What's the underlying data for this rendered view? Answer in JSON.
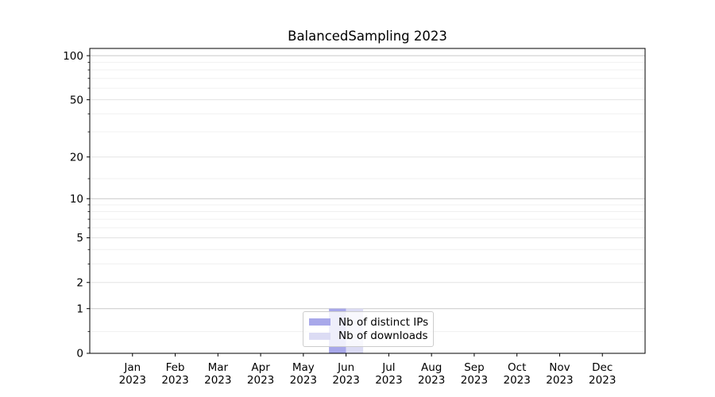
{
  "chart_data": {
    "type": "bar",
    "title": "BalancedSampling 2023",
    "categories": [
      "Jan",
      "Feb",
      "Mar",
      "Apr",
      "May",
      "Jun",
      "Jul",
      "Aug",
      "Sep",
      "Oct",
      "Nov",
      "Dec"
    ],
    "category_year": "2023",
    "series": [
      {
        "name": "Nb of distinct IPs",
        "color": "#a8a8ea",
        "values": [
          0,
          0,
          0,
          0,
          0,
          1,
          0,
          0,
          0,
          0,
          0,
          0
        ]
      },
      {
        "name": "Nb of downloads",
        "color": "#dcdcf4",
        "values": [
          0,
          0,
          0,
          0,
          0,
          1,
          0,
          0,
          0,
          0,
          0,
          0
        ]
      }
    ],
    "yscale": "log1p",
    "ylim": [
      0,
      112
    ],
    "yticks_labeled": [
      0,
      1,
      2,
      5,
      10,
      20,
      50,
      100
    ],
    "grid_strong": [
      1,
      10,
      100
    ],
    "grid_soft": [
      2,
      5,
      20,
      50
    ],
    "grid_minor": [
      0.4,
      3,
      4,
      6,
      7,
      8,
      9,
      14,
      30,
      40,
      60,
      70,
      80,
      90
    ],
    "bar_width": 0.4,
    "legend_position": "lower center",
    "grid": true
  },
  "colors": {
    "grid_strong": "#c9c9c9",
    "grid_soft": "#e3e3e3",
    "grid_minor": "#f0f0f0",
    "spine": "#000000",
    "tick": "#000000",
    "text": "#000000"
  }
}
